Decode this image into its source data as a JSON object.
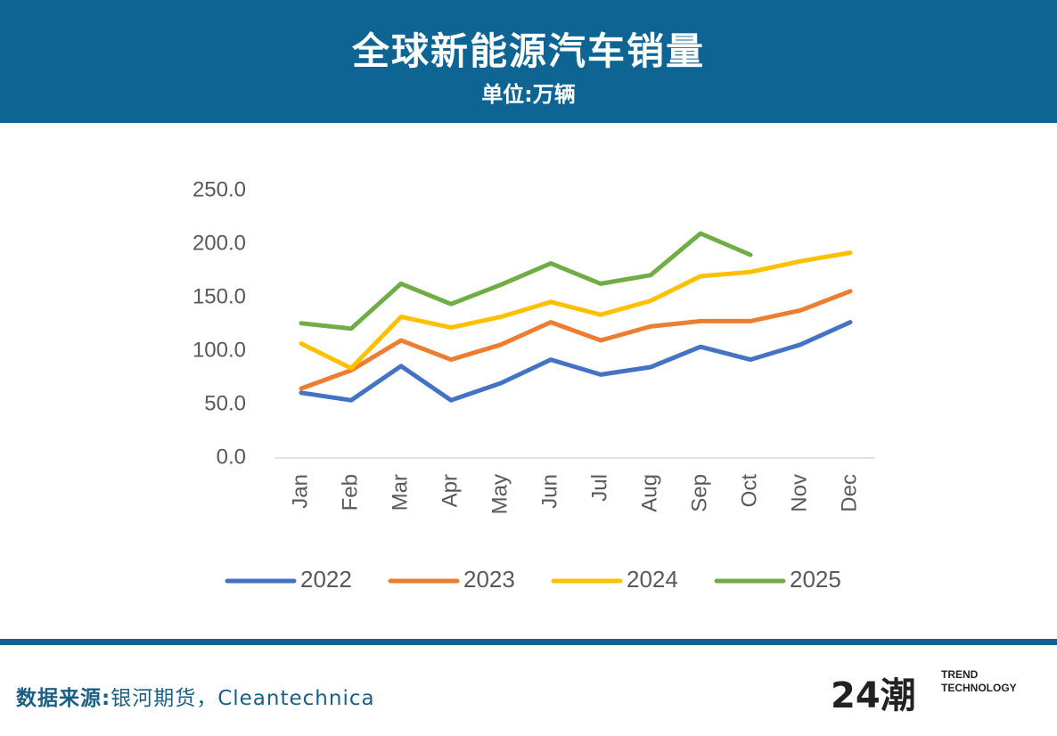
{
  "header": {
    "title": "全球新能源汽车销量",
    "subtitle": "单位:万辆"
  },
  "chart_data": {
    "type": "line",
    "categories": [
      "Jan",
      "Feb",
      "Mar",
      "Apr",
      "May",
      "Jun",
      "Jul",
      "Aug",
      "Sep",
      "Oct",
      "Nov",
      "Dec"
    ],
    "series": [
      {
        "name": "2022",
        "color": "#4472c4",
        "values": [
          61,
          54,
          86,
          54,
          70,
          92,
          78,
          85,
          104,
          92,
          106,
          127
        ]
      },
      {
        "name": "2023",
        "color": "#ed7d31",
        "values": [
          65,
          82,
          110,
          92,
          106,
          127,
          110,
          123,
          128,
          128,
          138,
          156
        ]
      },
      {
        "name": "2024",
        "color": "#ffc000",
        "values": [
          107,
          84,
          132,
          122,
          132,
          146,
          134,
          147,
          170,
          174,
          184,
          192
        ]
      },
      {
        "name": "2025",
        "color": "#70ad47",
        "values": [
          126,
          121,
          163,
          144,
          162,
          182,
          163,
          171,
          210,
          190,
          null,
          null
        ]
      }
    ],
    "ylim": [
      0,
      250
    ],
    "yticks": [
      {
        "value": 0,
        "label": "0.0"
      },
      {
        "value": 50,
        "label": "50.0"
      },
      {
        "value": 100,
        "label": "100.0"
      },
      {
        "value": 150,
        "label": "150.0"
      },
      {
        "value": 200,
        "label": "200.0"
      },
      {
        "value": 250,
        "label": "250.0"
      }
    ],
    "legend": "bottom",
    "grid": false
  },
  "footer": {
    "source_label": "数据来源:",
    "source": "银河期货，Cleantechnica",
    "logo": {
      "mark": "24潮",
      "tagline": [
        "TREND",
        "TECHNOLOGY"
      ]
    }
  }
}
